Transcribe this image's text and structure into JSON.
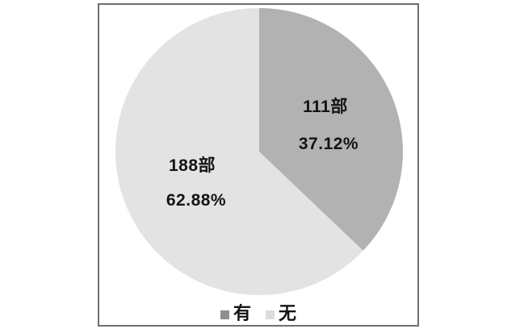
{
  "chart_data": {
    "type": "pie",
    "title": "",
    "legend_position": "bottom",
    "start_angle_deg": 0,
    "direction": "clockwise",
    "slices": [
      {
        "name": "有",
        "value": 111,
        "percent": 37.12,
        "count_label": "111部",
        "percent_label": "37.12%",
        "color": "#b2b2b2"
      },
      {
        "name": "无",
        "value": 188,
        "percent": 62.88,
        "count_label": "188部",
        "percent_label": "62.88%",
        "color": "#e3e3e3"
      }
    ]
  },
  "legend": {
    "items": [
      {
        "label": "有",
        "swatch": "#8f8f8f"
      },
      {
        "label": "无",
        "swatch": "#dcdcdc"
      }
    ]
  },
  "colors": {
    "frame_border": "#6f6f6f",
    "text": "#141414",
    "background": "#ffffff"
  }
}
